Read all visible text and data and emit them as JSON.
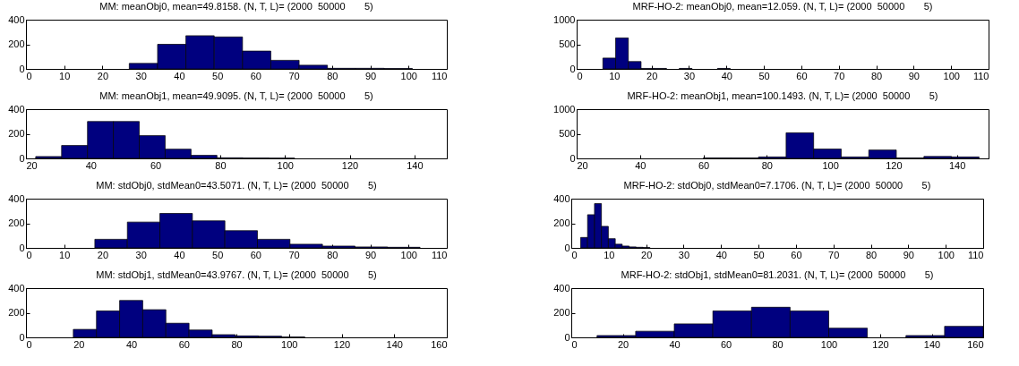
{
  "chart_data": [
    {
      "type": "histogram",
      "title": "MM: meanObj0, mean=49.8158. (N, T, L)= (2000  50000       5)",
      "bins": [
        27,
        34.4,
        41.8,
        49.2,
        56.6,
        64,
        71.4,
        78.8,
        86.2,
        93.6,
        101
      ],
      "values": [
        45,
        200,
        270,
        260,
        145,
        70,
        30,
        5,
        5,
        3
      ],
      "color": "#00007f",
      "xlim": [
        0,
        110
      ],
      "xticks": [
        0,
        10,
        20,
        30,
        40,
        50,
        60,
        70,
        80,
        90,
        100,
        110
      ],
      "ylim": [
        0,
        400
      ],
      "yticks": [
        0,
        200,
        400
      ]
    },
    {
      "type": "histogram",
      "title": "MRF-HO-2: meanObj0, mean=12.059. (N, T, L)= (2000  50000       5)",
      "bins": [
        7,
        10.4,
        13.8,
        17.2,
        20.6,
        24,
        27.4,
        30.8,
        34.2,
        37.6,
        41
      ],
      "values": [
        220,
        630,
        150,
        10,
        10,
        0,
        10,
        0,
        0,
        10
      ],
      "color": "#00007f",
      "xlim": [
        0,
        110
      ],
      "xticks": [
        0,
        10,
        20,
        30,
        40,
        50,
        60,
        70,
        80,
        90,
        100,
        110
      ],
      "ylim": [
        0,
        1000
      ],
      "yticks": [
        0,
        500,
        1000
      ]
    },
    {
      "type": "histogram",
      "title": "MM: meanObj1, mean=49.9095. (N, T, L)= (2000  50000       5)",
      "bins": [
        23,
        31,
        39,
        47,
        55,
        63,
        71,
        79,
        87,
        95,
        103
      ],
      "values": [
        15,
        105,
        300,
        300,
        185,
        75,
        25,
        5,
        3,
        2
      ],
      "color": "#00007f",
      "xlim": [
        20,
        150
      ],
      "xticks": [
        20,
        40,
        60,
        80,
        100,
        120,
        140
      ],
      "ylim": [
        0,
        400
      ],
      "yticks": [
        0,
        200,
        400
      ]
    },
    {
      "type": "histogram",
      "title": "MRF-HO-2: meanObj1, mean=100.1493. (N, T, L)= (2000  50000       5)",
      "bins": [
        60,
        68.7,
        77.4,
        86.1,
        94.8,
        103.5,
        112.2,
        120.9,
        129.6,
        138.3,
        147
      ],
      "values": [
        10,
        10,
        30,
        520,
        190,
        30,
        170,
        10,
        40,
        30
      ],
      "color": "#00007f",
      "xlim": [
        20,
        150
      ],
      "xticks": [
        20,
        40,
        60,
        80,
        100,
        120,
        140
      ],
      "ylim": [
        0,
        1000
      ],
      "yticks": [
        0,
        500,
        1000
      ]
    },
    {
      "type": "histogram",
      "title": "MM: stdObj0, stdMean0=43.5071. (N, T, L)= (2000  50000       5)",
      "bins": [
        18,
        26.5,
        35,
        43.5,
        52,
        60.5,
        69,
        77.5,
        86,
        94.5,
        103
      ],
      "values": [
        70,
        210,
        280,
        220,
        140,
        70,
        30,
        15,
        8,
        5
      ],
      "color": "#00007f",
      "xlim": [
        0,
        110
      ],
      "xticks": [
        0,
        10,
        20,
        30,
        40,
        50,
        60,
        70,
        80,
        90,
        100,
        110
      ],
      "ylim": [
        0,
        400
      ],
      "yticks": [
        0,
        200,
        400
      ]
    },
    {
      "type": "histogram",
      "title": "MRF-HO-2: stdObj0, stdMean0=7.1706. (N, T, L)= (2000  50000       5)",
      "bins": [
        2.5,
        4.35,
        6.2,
        8.05,
        9.9,
        11.75,
        13.6,
        15.45,
        17.3,
        19.15,
        21
      ],
      "values": [
        85,
        270,
        360,
        175,
        75,
        30,
        15,
        8,
        5,
        3
      ],
      "color": "#00007f",
      "xlim": [
        0,
        110
      ],
      "xticks": [
        0,
        10,
        20,
        30,
        40,
        50,
        60,
        70,
        80,
        90,
        100,
        110
      ],
      "ylim": [
        0,
        400
      ],
      "yticks": [
        0,
        200,
        400
      ]
    },
    {
      "type": "histogram",
      "title": "MM: stdObj1, stdMean0=43.9767. (N, T, L)= (2000  50000       5)",
      "bins": [
        18,
        26.8,
        35.6,
        44.4,
        53.2,
        62,
        70.8,
        79.6,
        88.4,
        97.2,
        106
      ],
      "values": [
        65,
        215,
        300,
        225,
        115,
        60,
        22,
        12,
        10,
        3
      ],
      "color": "#00007f",
      "xlim": [
        0,
        160
      ],
      "xticks": [
        0,
        20,
        40,
        60,
        80,
        100,
        120,
        140,
        160
      ],
      "ylim": [
        0,
        400
      ],
      "yticks": [
        0,
        200,
        400
      ]
    },
    {
      "type": "histogram",
      "title": "MRF-HO-2: stdObj1, stdMean0=81.2031. (N, T, L)= (2000  50000       5)",
      "bins": [
        10,
        25,
        40,
        55,
        70,
        85,
        100,
        115,
        130,
        145,
        160
      ],
      "values": [
        15,
        50,
        110,
        215,
        245,
        215,
        75,
        0,
        15,
        90
      ],
      "color": "#00007f",
      "xlim": [
        0,
        160
      ],
      "xticks": [
        0,
        20,
        40,
        60,
        80,
        100,
        120,
        140,
        160
      ],
      "ylim": [
        0,
        400
      ],
      "yticks": [
        0,
        200,
        400
      ]
    }
  ]
}
